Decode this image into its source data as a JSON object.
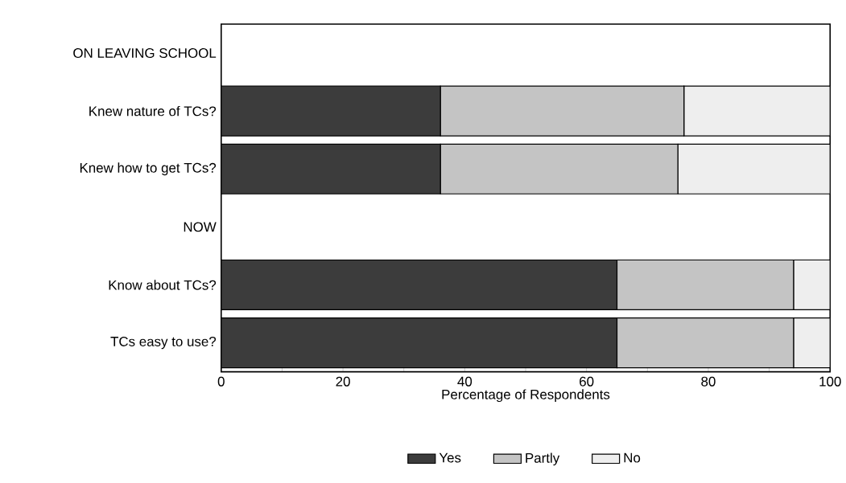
{
  "chart_data": {
    "type": "bar",
    "orientation": "horizontal",
    "stacked": true,
    "categories": [
      "ON LEAVING SCHOOL",
      "Knew nature of TCs?",
      "Knew how to get TCs?",
      "NOW",
      "Know about TCs?",
      "TCs easy to use?"
    ],
    "series": [
      {
        "name": "Yes",
        "color": "#3c3c3c",
        "values": [
          null,
          36,
          36,
          null,
          65,
          65
        ]
      },
      {
        "name": "Partly",
        "color": "#c4c4c4",
        "values": [
          null,
          40,
          39,
          null,
          29,
          29
        ]
      },
      {
        "name": "No",
        "color": "#eeeeee",
        "values": [
          null,
          24,
          25,
          null,
          6,
          6
        ]
      }
    ],
    "xlabel": "Percentage of Respondents",
    "xlim": [
      0,
      100
    ],
    "xticks": [
      0,
      {
        "value": 10,
        "label": null
      },
      20,
      {
        "value": 30,
        "label": null
      },
      40,
      {
        "value": 50,
        "label": null
      },
      60,
      {
        "value": 70,
        "label": null
      },
      80,
      {
        "value": 90,
        "label": null
      },
      100
    ],
    "legend": "bottom",
    "grid": false
  }
}
